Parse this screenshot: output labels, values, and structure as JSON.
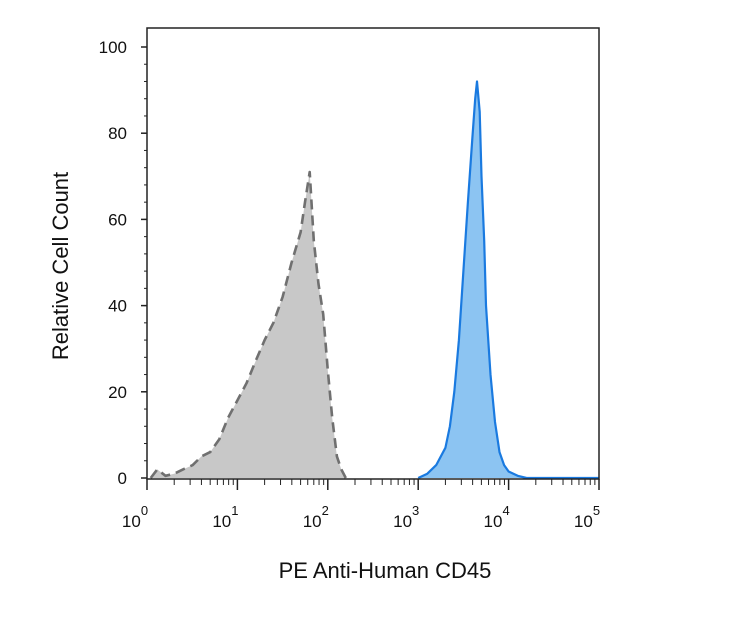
{
  "chart_data": {
    "type": "area",
    "xlabel": "PE Anti-Human CD45",
    "ylabel": "Relative Cell Count",
    "x_scale": "log",
    "xlim": [
      1,
      100000
    ],
    "ylim": [
      0,
      100
    ],
    "y_ticks": [
      0,
      20,
      40,
      60,
      80,
      100
    ],
    "x_ticks": [
      {
        "base": "10",
        "exp": "0",
        "value": 1
      },
      {
        "base": "10",
        "exp": "1",
        "value": 10
      },
      {
        "base": "10",
        "exp": "2",
        "value": 100
      },
      {
        "base": "10",
        "exp": "3",
        "value": 1000
      },
      {
        "base": "10",
        "exp": "4",
        "value": 10000
      },
      {
        "base": "10",
        "exp": "5",
        "value": 100000
      }
    ],
    "grid": false,
    "legend": "none",
    "series": [
      {
        "style": "dashed",
        "fill": "#c8c8c8",
        "stroke": "#707070",
        "points": [
          [
            1.1,
            0
          ],
          [
            1.3,
            2
          ],
          [
            1.6,
            0.5
          ],
          [
            2.0,
            1
          ],
          [
            2.5,
            2
          ],
          [
            3.2,
            3
          ],
          [
            4.0,
            5
          ],
          [
            5.0,
            6
          ],
          [
            6.3,
            9
          ],
          [
            7.9,
            14
          ],
          [
            10,
            18
          ],
          [
            12.6,
            22
          ],
          [
            15.8,
            27
          ],
          [
            20,
            32
          ],
          [
            25,
            36
          ],
          [
            31.6,
            42
          ],
          [
            39.8,
            50
          ],
          [
            50,
            57
          ],
          [
            56,
            64
          ],
          [
            63,
            71
          ],
          [
            70,
            55
          ],
          [
            79,
            45
          ],
          [
            89,
            38
          ],
          [
            100,
            25
          ],
          [
            112,
            14
          ],
          [
            126,
            5
          ],
          [
            141,
            2
          ],
          [
            158,
            0
          ]
        ]
      },
      {
        "style": "solid",
        "fill": "#8cc4f2",
        "stroke": "#1a7ae0",
        "points": [
          [
            1000,
            0
          ],
          [
            1260,
            1
          ],
          [
            1580,
            3
          ],
          [
            2000,
            7
          ],
          [
            2240,
            12
          ],
          [
            2510,
            20
          ],
          [
            2820,
            32
          ],
          [
            3160,
            48
          ],
          [
            3550,
            64
          ],
          [
            3980,
            79
          ],
          [
            4270,
            88
          ],
          [
            4470,
            92
          ],
          [
            4790,
            85
          ],
          [
            5010,
            70
          ],
          [
            5370,
            55
          ],
          [
            5620,
            40
          ],
          [
            6310,
            24
          ],
          [
            7080,
            13
          ],
          [
            7940,
            6
          ],
          [
            8910,
            3
          ],
          [
            10000,
            1.5
          ],
          [
            12600,
            0.5
          ],
          [
            15800,
            0
          ],
          [
            25100,
            0
          ],
          [
            50100,
            0
          ],
          [
            100000,
            0
          ]
        ]
      }
    ]
  }
}
